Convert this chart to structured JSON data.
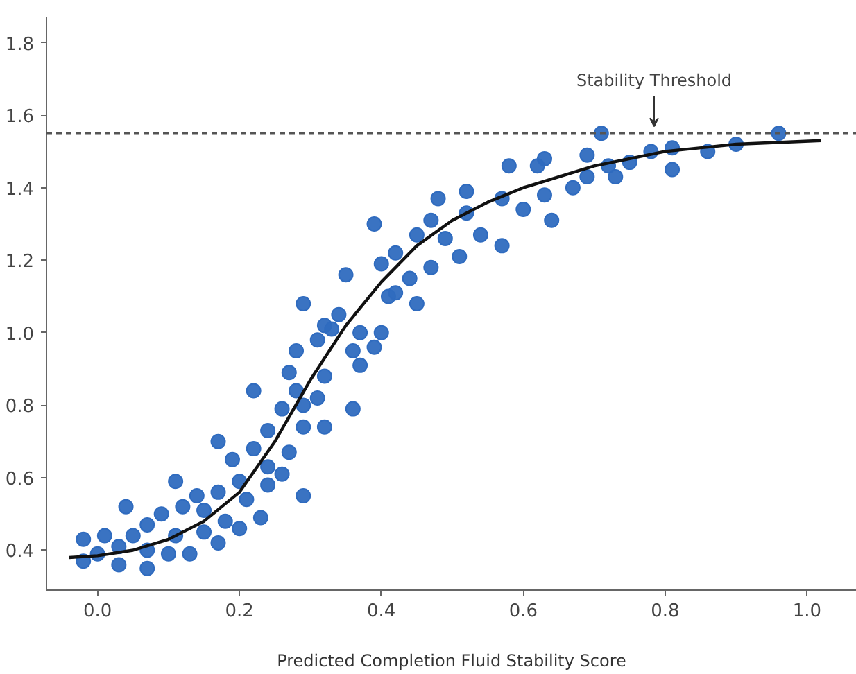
{
  "chart_data": {
    "type": "scatter",
    "xlabel": "Predicted Completion Fluid Stability Score",
    "xlim": [
      -0.072,
      1.07
    ],
    "ylim": [
      0.29,
      1.87
    ],
    "xticks": [
      {
        "value": 0,
        "label": "0.0"
      },
      0.2,
      0.4,
      0.6,
      0.8,
      {
        "value": 1,
        "label": "1.0"
      }
    ],
    "yticks": [
      0.4,
      0.6,
      0.8,
      {
        "value": 1,
        "label": "1.0"
      },
      1.2,
      1.4,
      1.6,
      1.8
    ],
    "grid": false,
    "marker": "circle",
    "ref_lines": [
      {
        "axis": "y",
        "value": 1.55,
        "label": "Stability Threshold",
        "color": "#555555",
        "line_style": "dashed"
      }
    ],
    "series": [
      {
        "color": "#2f6bbf",
        "x": [
          -0.02,
          0.01,
          -0.02,
          0.0,
          0.03,
          0.03,
          0.04,
          0.05,
          0.07,
          0.07,
          0.07,
          0.09,
          0.1,
          0.11,
          0.12,
          0.11,
          0.13,
          0.14,
          0.15,
          0.15,
          0.17,
          0.17,
          0.17,
          0.18,
          0.19,
          0.2,
          0.2,
          0.21,
          0.22,
          0.22,
          0.23,
          0.24,
          0.24,
          0.24,
          0.26,
          0.26,
          0.27,
          0.27,
          0.28,
          0.28,
          0.29,
          0.29,
          0.29,
          0.31,
          0.31,
          0.32,
          0.32,
          0.33,
          0.36,
          0.36,
          0.37,
          0.37,
          0.39,
          0.4,
          0.29,
          0.32,
          0.34,
          0.35,
          0.39,
          0.4,
          0.41,
          0.42,
          0.42,
          0.44,
          0.45,
          0.45,
          0.47,
          0.47,
          0.48,
          0.49,
          0.51,
          0.52,
          0.52,
          0.54,
          0.57,
          0.57,
          0.58,
          0.6,
          0.62,
          0.63,
          0.63,
          0.64,
          0.67,
          0.69,
          0.69,
          0.71,
          0.72,
          0.73,
          0.75,
          0.78,
          0.81,
          0.81,
          0.86,
          0.9,
          0.96
        ],
        "values": [
          0.43,
          0.44,
          0.37,
          0.39,
          0.41,
          0.36,
          0.52,
          0.44,
          0.47,
          0.35,
          0.4,
          0.5,
          0.39,
          0.59,
          0.52,
          0.44,
          0.39,
          0.55,
          0.51,
          0.45,
          0.7,
          0.56,
          0.42,
          0.48,
          0.65,
          0.59,
          0.46,
          0.54,
          0.84,
          0.68,
          0.49,
          0.63,
          0.58,
          0.73,
          0.79,
          0.61,
          0.89,
          0.67,
          0.95,
          0.84,
          0.74,
          0.55,
          0.8,
          0.98,
          0.82,
          0.74,
          0.88,
          1.01,
          0.95,
          0.79,
          0.91,
          1.0,
          0.96,
          1.0,
          1.08,
          1.02,
          1.05,
          1.16,
          1.3,
          1.19,
          1.1,
          1.22,
          1.11,
          1.15,
          1.08,
          1.27,
          1.31,
          1.18,
          1.37,
          1.26,
          1.21,
          1.33,
          1.39,
          1.27,
          1.24,
          1.37,
          1.46,
          1.34,
          1.46,
          1.48,
          1.38,
          1.31,
          1.4,
          1.43,
          1.49,
          1.55,
          1.46,
          1.43,
          1.47,
          1.5,
          1.51,
          1.45,
          1.5,
          1.52,
          1.55
        ]
      },
      {
        "type": "line",
        "color": "#111111",
        "line_style": "solid",
        "marker": "none",
        "x": [
          -0.04,
          0.0,
          0.05,
          0.1,
          0.15,
          0.2,
          0.25,
          0.3,
          0.35,
          0.4,
          0.45,
          0.5,
          0.55,
          0.6,
          0.7,
          0.8,
          0.9,
          1.02
        ],
        "values": [
          0.38,
          0.385,
          0.4,
          0.43,
          0.48,
          0.56,
          0.7,
          0.87,
          1.02,
          1.14,
          1.24,
          1.31,
          1.36,
          1.4,
          1.46,
          1.5,
          1.52,
          1.53
        ]
      }
    ]
  }
}
